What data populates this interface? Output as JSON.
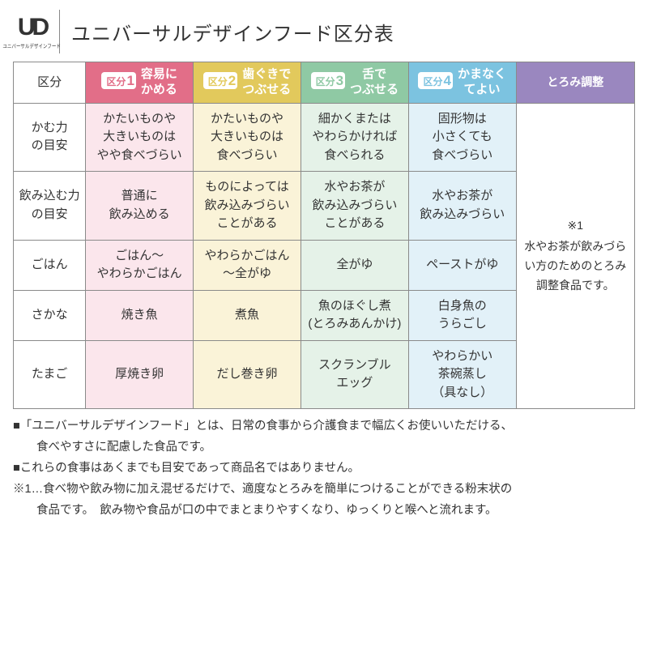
{
  "logo": {
    "mark": "UD",
    "sub": "ユニバーサルデザインフード"
  },
  "title": "ユニバーサルデザインフード区分表",
  "colors": {
    "c1_head": "#e26e88",
    "c1_body": "#fbe6ec",
    "c2_head": "#e2c95c",
    "c2_body": "#faf3d8",
    "c3_head": "#8fc9a4",
    "c3_body": "#e5f2e8",
    "c4_head": "#7cc3e0",
    "c4_body": "#e2f1f8",
    "c5_head": "#9a87bf",
    "c5_body": "#ffffff",
    "border": "#8a8a8a"
  },
  "header": {
    "kubun": "区分",
    "cols": [
      {
        "badge_pre": "区分",
        "badge_num": "1",
        "label": "容易に\nかめる"
      },
      {
        "badge_pre": "区分",
        "badge_num": "2",
        "label": "歯ぐきで\nつぶせる"
      },
      {
        "badge_pre": "区分",
        "badge_num": "3",
        "label": "舌で\nつぶせる"
      },
      {
        "badge_pre": "区分",
        "badge_num": "4",
        "label": "かまなく\nてよい"
      }
    ],
    "col5": "とろみ調整"
  },
  "rows": [
    {
      "label": "かむ力\nの目安",
      "cells": [
        "かたいものや\n大きいものは\nやや食べづらい",
        "かたいものや\n大きいものは\n食べづらい",
        "細かくまたは\nやわらかければ\n食べられる",
        "固形物は\n小さくても\n食べづらい"
      ]
    },
    {
      "label": "飲み込む力\nの目安",
      "cells": [
        "普通に\n飲み込める",
        "ものによっては\n飲み込みづらい\nことがある",
        "水やお茶が\n飲み込みづらい\nことがある",
        "水やお茶が\n飲み込みづらい"
      ]
    },
    {
      "label": "ごはん",
      "cells": [
        "ごはん～\nやわらかごはん",
        "やわらかごはん\n～全がゆ",
        "全がゆ",
        "ペーストがゆ"
      ]
    },
    {
      "label": "さかな",
      "cells": [
        "焼き魚",
        "煮魚",
        "魚のほぐし煮\n(とろみあんかけ)",
        "白身魚の\nうらごし"
      ]
    },
    {
      "label": "たまご",
      "cells": [
        "厚焼き卵",
        "だし巻き卵",
        "スクランブル\nエッグ",
        "やわらかい\n茶碗蒸し\n（具なし）"
      ]
    }
  ],
  "sideNote": {
    "mark": "※1",
    "text": "水やお茶が飲みづらい方のためのとろみ調整食品です。"
  },
  "footnotes": [
    "■「ユニバーサルデザインフード」とは、日常の食事から介護食まで幅広くお使いいただける、",
    "　食べやすさに配慮した食品です。",
    "■これらの食事はあくまでも目安であって商品名ではありません。",
    "※1…食べ物や飲み物に加え混ぜるだけで、適度なとろみを簡単につけることができる粉末状の",
    "　食品です。　飲み物や食品が口の中でまとまりやすくなり、ゆっくりと喉へと流れます。"
  ]
}
